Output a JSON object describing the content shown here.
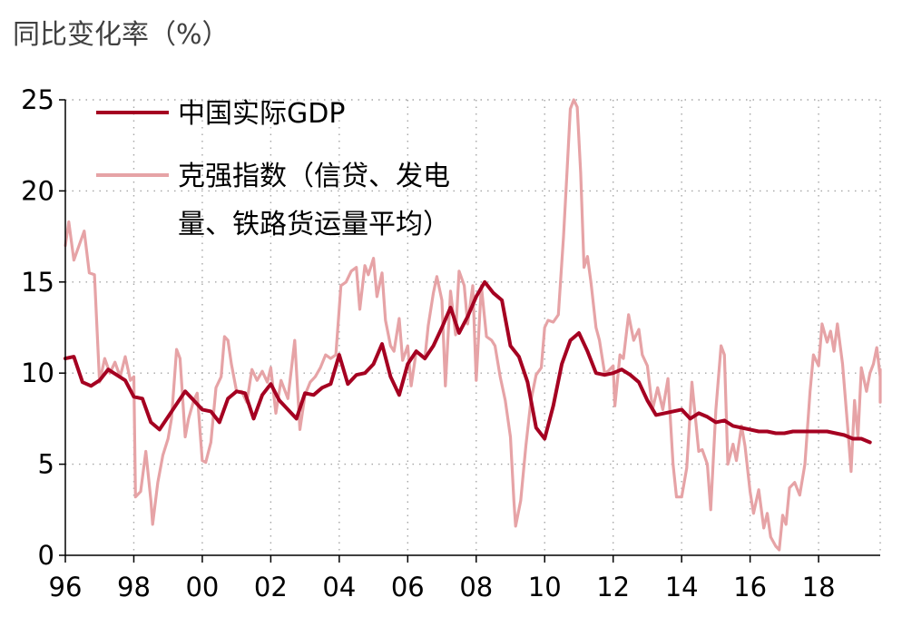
{
  "chart_data": {
    "type": "line",
    "unit_label": "同比变化率（%）",
    "xlabel": "",
    "ylabel": "",
    "ylim": [
      0,
      25
    ],
    "xlim": [
      1996.0,
      2019.8
    ],
    "y_ticks": [
      0,
      5,
      10,
      15,
      20,
      25
    ],
    "x_ticks": [
      {
        "value": 1996,
        "label": "96"
      },
      {
        "value": 1998,
        "label": "98"
      },
      {
        "value": 2000,
        "label": "00"
      },
      {
        "value": 2002,
        "label": "02"
      },
      {
        "value": 2004,
        "label": "04"
      },
      {
        "value": 2006,
        "label": "06"
      },
      {
        "value": 2008,
        "label": "08"
      },
      {
        "value": 2010,
        "label": "10"
      },
      {
        "value": 2012,
        "label": "12"
      },
      {
        "value": 2014,
        "label": "14"
      },
      {
        "value": 2016,
        "label": "16"
      },
      {
        "value": 2018,
        "label": "18"
      }
    ],
    "grid": true,
    "legend_position": "top-left",
    "series": [
      {
        "name": "中国实际GDP",
        "color": "#a50021",
        "points": [
          [
            1996.0,
            10.8
          ],
          [
            1996.25,
            10.9
          ],
          [
            1996.5,
            9.5
          ],
          [
            1996.75,
            9.3
          ],
          [
            1997.0,
            9.6
          ],
          [
            1997.25,
            10.2
          ],
          [
            1997.5,
            9.9
          ],
          [
            1997.75,
            9.6
          ],
          [
            1998.0,
            8.7
          ],
          [
            1998.25,
            8.6
          ],
          [
            1998.5,
            7.3
          ],
          [
            1998.75,
            6.9
          ],
          [
            1999.0,
            7.6
          ],
          [
            1999.25,
            8.3
          ],
          [
            1999.5,
            9.0
          ],
          [
            1999.75,
            8.5
          ],
          [
            2000.0,
            8.0
          ],
          [
            2000.25,
            7.9
          ],
          [
            2000.5,
            7.3
          ],
          [
            2000.75,
            8.6
          ],
          [
            2001.0,
            9.0
          ],
          [
            2001.25,
            8.9
          ],
          [
            2001.5,
            7.5
          ],
          [
            2001.75,
            8.8
          ],
          [
            2002.0,
            9.4
          ],
          [
            2002.25,
            8.5
          ],
          [
            2002.5,
            8.0
          ],
          [
            2002.75,
            7.5
          ],
          [
            2003.0,
            8.9
          ],
          [
            2003.25,
            8.8
          ],
          [
            2003.5,
            9.2
          ],
          [
            2003.75,
            9.4
          ],
          [
            2004.0,
            11.0
          ],
          [
            2004.25,
            9.4
          ],
          [
            2004.5,
            9.9
          ],
          [
            2004.75,
            10.0
          ],
          [
            2005.0,
            10.5
          ],
          [
            2005.25,
            11.6
          ],
          [
            2005.5,
            9.8
          ],
          [
            2005.75,
            8.8
          ],
          [
            2006.0,
            10.5
          ],
          [
            2006.25,
            11.2
          ],
          [
            2006.5,
            10.8
          ],
          [
            2006.75,
            11.5
          ],
          [
            2007.0,
            12.5
          ],
          [
            2007.25,
            13.6
          ],
          [
            2007.5,
            12.2
          ],
          [
            2007.75,
            13.1
          ],
          [
            2008.0,
            14.2
          ],
          [
            2008.25,
            15.0
          ],
          [
            2008.5,
            14.4
          ],
          [
            2008.75,
            14.0
          ],
          [
            2009.0,
            11.5
          ],
          [
            2009.25,
            10.9
          ],
          [
            2009.5,
            9.5
          ],
          [
            2009.75,
            7.0
          ],
          [
            2010.0,
            6.4
          ],
          [
            2010.25,
            8.2
          ],
          [
            2010.5,
            10.5
          ],
          [
            2010.75,
            11.8
          ],
          [
            2011.0,
            12.2
          ],
          [
            2011.25,
            11.2
          ],
          [
            2011.5,
            10.0
          ],
          [
            2011.75,
            9.9
          ],
          [
            2012.0,
            10.0
          ],
          [
            2012.25,
            10.2
          ],
          [
            2012.5,
            9.9
          ],
          [
            2012.75,
            9.5
          ],
          [
            2013.0,
            8.5
          ],
          [
            2013.25,
            7.7
          ],
          [
            2013.5,
            7.8
          ],
          [
            2013.75,
            7.9
          ],
          [
            2014.0,
            8.0
          ],
          [
            2014.25,
            7.5
          ],
          [
            2014.5,
            7.8
          ],
          [
            2014.75,
            7.6
          ],
          [
            2015.0,
            7.3
          ],
          [
            2015.25,
            7.4
          ],
          [
            2015.5,
            7.1
          ],
          [
            2015.75,
            7.0
          ],
          [
            2016.0,
            6.9
          ],
          [
            2016.25,
            6.8
          ],
          [
            2016.5,
            6.8
          ],
          [
            2016.75,
            6.7
          ],
          [
            2017.0,
            6.7
          ],
          [
            2017.25,
            6.8
          ],
          [
            2017.5,
            6.8
          ],
          [
            2017.75,
            6.8
          ],
          [
            2018.0,
            6.8
          ],
          [
            2018.25,
            6.8
          ],
          [
            2018.5,
            6.7
          ],
          [
            2018.75,
            6.6
          ],
          [
            2019.0,
            6.4
          ],
          [
            2019.25,
            6.4
          ],
          [
            2019.5,
            6.2
          ]
        ]
      },
      {
        "name": "克强指数（信贷、发电\n量、铁路货运量平均）",
        "color": "#e6a3a6",
        "points": [
          [
            1996.0,
            17.0
          ],
          [
            1996.1,
            18.3
          ],
          [
            1996.25,
            16.2
          ],
          [
            1996.4,
            17.0
          ],
          [
            1996.55,
            17.8
          ],
          [
            1996.7,
            15.5
          ],
          [
            1996.85,
            15.4
          ],
          [
            1997.0,
            9.5
          ],
          [
            1997.15,
            10.8
          ],
          [
            1997.3,
            10.0
          ],
          [
            1997.45,
            10.6
          ],
          [
            1997.6,
            9.8
          ],
          [
            1997.75,
            10.9
          ],
          [
            1997.9,
            9.6
          ],
          [
            1998.0,
            9.8
          ],
          [
            1998.05,
            3.2
          ],
          [
            1998.2,
            3.5
          ],
          [
            1998.35,
            5.7
          ],
          [
            1998.5,
            3.0
          ],
          [
            1998.55,
            1.7
          ],
          [
            1998.7,
            4.0
          ],
          [
            1998.85,
            5.5
          ],
          [
            1999.0,
            6.4
          ],
          [
            1999.1,
            7.5
          ],
          [
            1999.25,
            11.3
          ],
          [
            1999.35,
            10.8
          ],
          [
            1999.5,
            6.5
          ],
          [
            1999.6,
            7.5
          ],
          [
            1999.75,
            8.5
          ],
          [
            1999.85,
            8.9
          ],
          [
            2000.0,
            5.2
          ],
          [
            2000.1,
            5.1
          ],
          [
            2000.25,
            6.2
          ],
          [
            2000.4,
            9.2
          ],
          [
            2000.55,
            9.8
          ],
          [
            2000.65,
            12.0
          ],
          [
            2000.75,
            11.8
          ],
          [
            2000.85,
            10.5
          ],
          [
            2001.0,
            9.0
          ],
          [
            2001.15,
            9.0
          ],
          [
            2001.3,
            8.4
          ],
          [
            2001.45,
            10.2
          ],
          [
            2001.6,
            9.6
          ],
          [
            2001.75,
            10.1
          ],
          [
            2001.9,
            9.5
          ],
          [
            2002.0,
            10.3
          ],
          [
            2002.15,
            7.8
          ],
          [
            2002.3,
            9.6
          ],
          [
            2002.5,
            8.6
          ],
          [
            2002.7,
            11.8
          ],
          [
            2002.85,
            6.9
          ],
          [
            2003.0,
            8.8
          ],
          [
            2003.15,
            9.5
          ],
          [
            2003.3,
            9.8
          ],
          [
            2003.45,
            10.3
          ],
          [
            2003.6,
            11.0
          ],
          [
            2003.75,
            10.8
          ],
          [
            2003.9,
            11.0
          ],
          [
            2004.05,
            14.8
          ],
          [
            2004.2,
            15.0
          ],
          [
            2004.35,
            15.6
          ],
          [
            2004.5,
            15.8
          ],
          [
            2004.6,
            13.5
          ],
          [
            2004.75,
            15.9
          ],
          [
            2004.85,
            15.4
          ],
          [
            2005.0,
            16.3
          ],
          [
            2005.1,
            14.2
          ],
          [
            2005.25,
            15.5
          ],
          [
            2005.35,
            12.9
          ],
          [
            2005.5,
            11.5
          ],
          [
            2005.6,
            11.2
          ],
          [
            2005.75,
            13.0
          ],
          [
            2005.85,
            10.7
          ],
          [
            2006.0,
            11.5
          ],
          [
            2006.1,
            9.3
          ],
          [
            2006.25,
            11.2
          ],
          [
            2006.4,
            11.0
          ],
          [
            2006.5,
            10.8
          ],
          [
            2006.6,
            12.6
          ],
          [
            2006.75,
            14.4
          ],
          [
            2006.85,
            15.3
          ],
          [
            2007.0,
            14.0
          ],
          [
            2007.1,
            9.3
          ],
          [
            2007.25,
            14.5
          ],
          [
            2007.4,
            12.1
          ],
          [
            2007.5,
            15.6
          ],
          [
            2007.65,
            14.8
          ],
          [
            2007.75,
            12.7
          ],
          [
            2007.9,
            14.8
          ],
          [
            2008.0,
            9.6
          ],
          [
            2008.15,
            14.8
          ],
          [
            2008.3,
            12.0
          ],
          [
            2008.45,
            11.8
          ],
          [
            2008.55,
            11.5
          ],
          [
            2008.7,
            9.8
          ],
          [
            2008.85,
            8.5
          ],
          [
            2009.0,
            6.5
          ],
          [
            2009.1,
            3.0
          ],
          [
            2009.15,
            1.6
          ],
          [
            2009.3,
            3.0
          ],
          [
            2009.45,
            6.0
          ],
          [
            2009.6,
            8.5
          ],
          [
            2009.75,
            9.9
          ],
          [
            2009.9,
            10.3
          ],
          [
            2010.0,
            12.5
          ],
          [
            2010.1,
            12.9
          ],
          [
            2010.25,
            12.8
          ],
          [
            2010.4,
            13.2
          ],
          [
            2010.55,
            17.5
          ],
          [
            2010.65,
            21.0
          ],
          [
            2010.75,
            24.5
          ],
          [
            2010.85,
            25.3
          ],
          [
            2010.95,
            24.6
          ],
          [
            2011.05,
            21.0
          ],
          [
            2011.15,
            15.8
          ],
          [
            2011.25,
            16.4
          ],
          [
            2011.35,
            15.0
          ],
          [
            2011.5,
            12.5
          ],
          [
            2011.6,
            11.8
          ],
          [
            2011.75,
            10.0
          ],
          [
            2011.85,
            10.1
          ],
          [
            2012.0,
            10.4
          ],
          [
            2012.05,
            8.2
          ],
          [
            2012.2,
            11.0
          ],
          [
            2012.3,
            10.8
          ],
          [
            2012.45,
            13.2
          ],
          [
            2012.6,
            11.8
          ],
          [
            2012.75,
            12.4
          ],
          [
            2012.85,
            11.0
          ],
          [
            2013.0,
            10.4
          ],
          [
            2013.15,
            8.0
          ],
          [
            2013.3,
            9.2
          ],
          [
            2013.45,
            8.0
          ],
          [
            2013.6,
            9.7
          ],
          [
            2013.75,
            5.0
          ],
          [
            2013.85,
            3.2
          ],
          [
            2014.0,
            3.2
          ],
          [
            2014.15,
            4.8
          ],
          [
            2014.3,
            9.5
          ],
          [
            2014.5,
            5.7
          ],
          [
            2014.6,
            5.8
          ],
          [
            2014.75,
            5.0
          ],
          [
            2014.85,
            2.5
          ],
          [
            2015.0,
            8.0
          ],
          [
            2015.15,
            11.5
          ],
          [
            2015.25,
            11.0
          ],
          [
            2015.35,
            5.0
          ],
          [
            2015.5,
            6.1
          ],
          [
            2015.6,
            5.2
          ],
          [
            2015.75,
            7.1
          ],
          [
            2015.85,
            6.0
          ],
          [
            2016.0,
            3.5
          ],
          [
            2016.1,
            2.3
          ],
          [
            2016.25,
            3.6
          ],
          [
            2016.4,
            1.5
          ],
          [
            2016.5,
            2.3
          ],
          [
            2016.6,
            1.0
          ],
          [
            2016.75,
            0.5
          ],
          [
            2016.85,
            0.3
          ],
          [
            2016.95,
            2.2
          ],
          [
            2017.05,
            1.7
          ],
          [
            2017.15,
            3.7
          ],
          [
            2017.3,
            4.0
          ],
          [
            2017.45,
            3.3
          ],
          [
            2017.6,
            5.0
          ],
          [
            2017.75,
            9.0
          ],
          [
            2017.85,
            11.0
          ],
          [
            2018.0,
            10.4
          ],
          [
            2018.1,
            12.7
          ],
          [
            2018.25,
            11.7
          ],
          [
            2018.35,
            12.3
          ],
          [
            2018.45,
            11.2
          ],
          [
            2018.55,
            12.7
          ],
          [
            2018.7,
            10.5
          ],
          [
            2018.85,
            7.0
          ],
          [
            2018.95,
            4.6
          ],
          [
            2019.05,
            8.5
          ],
          [
            2019.15,
            6.5
          ],
          [
            2019.25,
            10.3
          ],
          [
            2019.4,
            9.0
          ],
          [
            2019.5,
            10.0
          ],
          [
            2019.6,
            10.5
          ],
          [
            2019.7,
            11.4
          ],
          [
            2019.8,
            9.8
          ],
          [
            2019.9,
            8.4
          ],
          [
            2020.0,
            10.2
          ],
          [
            2020.1,
            8.4
          ],
          [
            2020.25,
            8.4
          ]
        ]
      }
    ]
  }
}
